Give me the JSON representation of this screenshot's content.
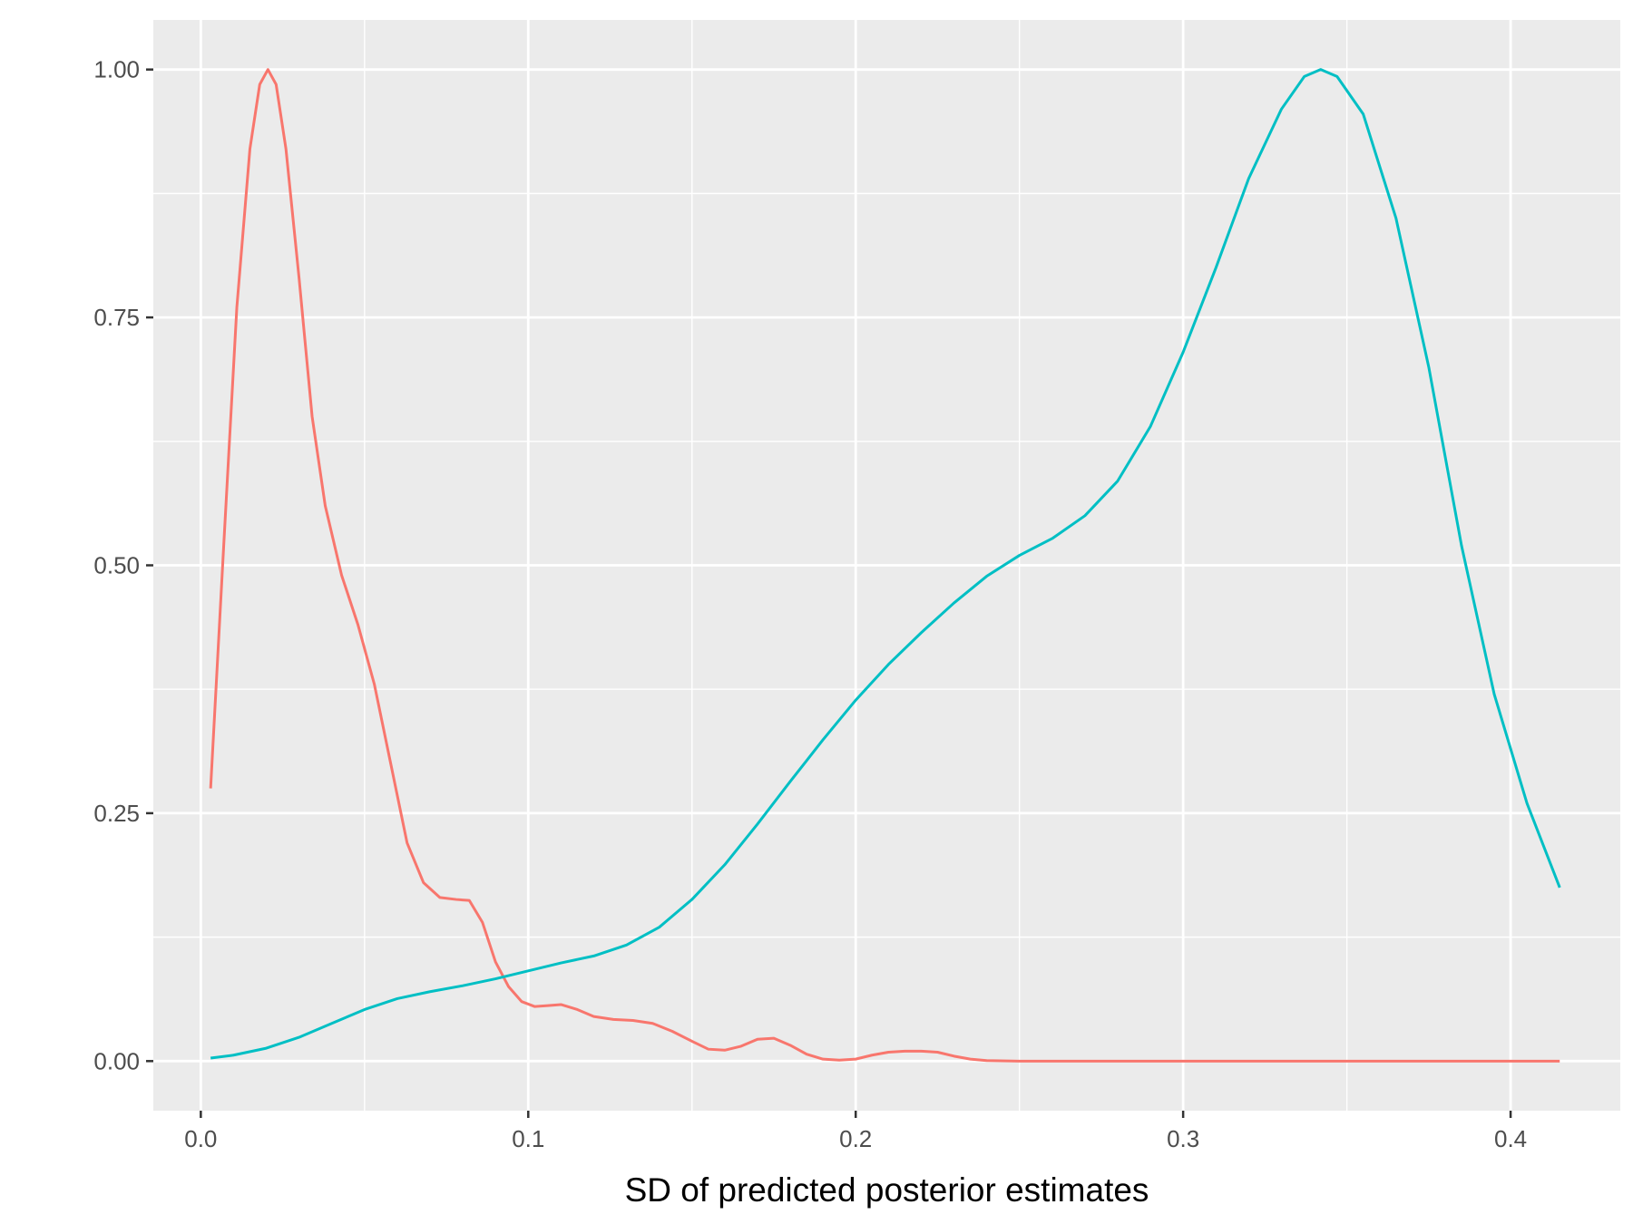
{
  "chart_data": {
    "type": "line",
    "title": "",
    "xlabel": "SD of predicted posterior estimates",
    "ylabel": "",
    "xlim": [
      -0.0145,
      0.4335
    ],
    "ylim": [
      -0.05,
      1.05
    ],
    "x_ticks": [
      0.0,
      0.1,
      0.2,
      0.3,
      0.4
    ],
    "x_tick_labels": [
      "0.0",
      "0.1",
      "0.2",
      "0.3",
      "0.4"
    ],
    "y_ticks": [
      0.0,
      0.25,
      0.5,
      0.75,
      1.0
    ],
    "y_tick_labels": [
      "0.00",
      "0.25",
      "0.50",
      "0.75",
      "1.00"
    ],
    "x_minor_ticks": [
      0.05,
      0.15,
      0.25,
      0.35
    ],
    "y_minor_ticks": [
      0.125,
      0.375,
      0.625,
      0.875
    ],
    "grid": true,
    "legend": "none",
    "series": [
      {
        "color": "#F8766D",
        "points": [
          [
            0.003,
            0.275
          ],
          [
            0.007,
            0.52
          ],
          [
            0.011,
            0.76
          ],
          [
            0.015,
            0.92
          ],
          [
            0.018,
            0.985
          ],
          [
            0.0205,
            1.0
          ],
          [
            0.023,
            0.985
          ],
          [
            0.026,
            0.92
          ],
          [
            0.03,
            0.79
          ],
          [
            0.034,
            0.65
          ],
          [
            0.038,
            0.56
          ],
          [
            0.043,
            0.49
          ],
          [
            0.048,
            0.44
          ],
          [
            0.053,
            0.38
          ],
          [
            0.058,
            0.3
          ],
          [
            0.063,
            0.22
          ],
          [
            0.068,
            0.18
          ],
          [
            0.073,
            0.165
          ],
          [
            0.078,
            0.163
          ],
          [
            0.082,
            0.162
          ],
          [
            0.086,
            0.14
          ],
          [
            0.09,
            0.1
          ],
          [
            0.094,
            0.075
          ],
          [
            0.098,
            0.06
          ],
          [
            0.102,
            0.055
          ],
          [
            0.106,
            0.056
          ],
          [
            0.11,
            0.057
          ],
          [
            0.115,
            0.052
          ],
          [
            0.12,
            0.045
          ],
          [
            0.126,
            0.042
          ],
          [
            0.132,
            0.041
          ],
          [
            0.138,
            0.038
          ],
          [
            0.144,
            0.03
          ],
          [
            0.15,
            0.02
          ],
          [
            0.155,
            0.012
          ],
          [
            0.16,
            0.011
          ],
          [
            0.165,
            0.015
          ],
          [
            0.17,
            0.022
          ],
          [
            0.175,
            0.023
          ],
          [
            0.18,
            0.016
          ],
          [
            0.185,
            0.007
          ],
          [
            0.19,
            0.002
          ],
          [
            0.195,
            0.001
          ],
          [
            0.2,
            0.002
          ],
          [
            0.205,
            0.006
          ],
          [
            0.21,
            0.009
          ],
          [
            0.215,
            0.01
          ],
          [
            0.22,
            0.01
          ],
          [
            0.225,
            0.009
          ],
          [
            0.23,
            0.005
          ],
          [
            0.235,
            0.002
          ],
          [
            0.24,
            0.0005
          ],
          [
            0.25,
            0.0
          ],
          [
            0.3,
            0.0
          ],
          [
            0.35,
            0.0
          ],
          [
            0.4,
            0.0
          ],
          [
            0.415,
            0.0
          ]
        ]
      },
      {
        "color": "#00BFC4",
        "points": [
          [
            0.003,
            0.003
          ],
          [
            0.01,
            0.006
          ],
          [
            0.02,
            0.013
          ],
          [
            0.03,
            0.024
          ],
          [
            0.04,
            0.038
          ],
          [
            0.05,
            0.052
          ],
          [
            0.06,
            0.063
          ],
          [
            0.07,
            0.07
          ],
          [
            0.08,
            0.076
          ],
          [
            0.09,
            0.083
          ],
          [
            0.1,
            0.091
          ],
          [
            0.11,
            0.099
          ],
          [
            0.12,
            0.106
          ],
          [
            0.13,
            0.117
          ],
          [
            0.14,
            0.135
          ],
          [
            0.15,
            0.163
          ],
          [
            0.16,
            0.198
          ],
          [
            0.17,
            0.239
          ],
          [
            0.18,
            0.282
          ],
          [
            0.19,
            0.324
          ],
          [
            0.2,
            0.364
          ],
          [
            0.21,
            0.4
          ],
          [
            0.22,
            0.432
          ],
          [
            0.23,
            0.462
          ],
          [
            0.24,
            0.489
          ],
          [
            0.25,
            0.51
          ],
          [
            0.26,
            0.527
          ],
          [
            0.27,
            0.55
          ],
          [
            0.28,
            0.585
          ],
          [
            0.29,
            0.64
          ],
          [
            0.3,
            0.715
          ],
          [
            0.31,
            0.8
          ],
          [
            0.32,
            0.89
          ],
          [
            0.33,
            0.96
          ],
          [
            0.337,
            0.993
          ],
          [
            0.342,
            1.0
          ],
          [
            0.347,
            0.993
          ],
          [
            0.355,
            0.955
          ],
          [
            0.365,
            0.85
          ],
          [
            0.375,
            0.7
          ],
          [
            0.385,
            0.52
          ],
          [
            0.395,
            0.37
          ],
          [
            0.405,
            0.26
          ],
          [
            0.415,
            0.175
          ]
        ]
      }
    ]
  }
}
